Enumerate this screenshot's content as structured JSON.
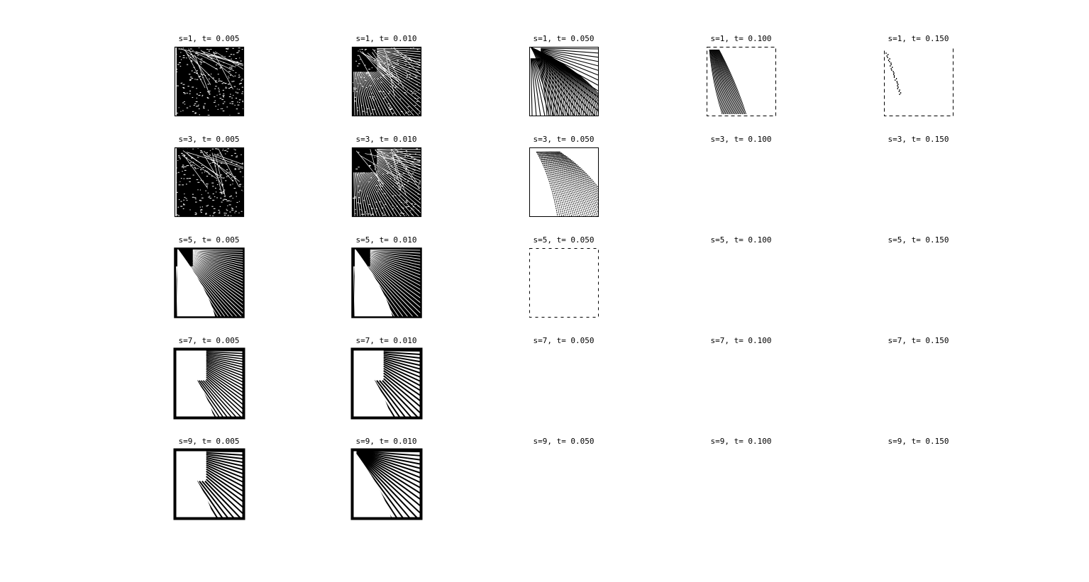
{
  "chart_data": {
    "type": "grid-of-plots",
    "rows_s": [
      1,
      3,
      5,
      7,
      9
    ],
    "cols_t": [
      "0.005",
      "0.010",
      "0.050",
      "0.100",
      "0.150"
    ],
    "titles": [
      [
        "s=1, t= 0.005",
        "s=1, t= 0.010",
        "s=1, t= 0.050",
        "s=1, t= 0.100",
        "s=1, t= 0.150"
      ],
      [
        "s=3, t= 0.005",
        "s=3, t= 0.010",
        "s=3, t= 0.050",
        "s=3, t= 0.100",
        "s=3, t= 0.150"
      ],
      [
        "s=5, t= 0.005",
        "s=5, t= 0.010",
        "s=5, t= 0.050",
        "s=5, t= 0.100",
        "s=5, t= 0.150"
      ],
      [
        "s=7, t= 0.005",
        "s=7, t= 0.010",
        "s=7, t= 0.050",
        "s=7, t= 0.100",
        "s=7, t= 0.150"
      ],
      [
        "s=9, t= 0.005",
        "s=9, t= 0.010",
        "s=9, t= 0.050",
        "s=9, t= 0.100",
        "s=9, t= 0.150"
      ]
    ],
    "panel_style": [
      [
        "dense",
        "dense-fan",
        "curved-fan",
        "sparse-curve",
        "faint-streak"
      ],
      [
        "dense",
        "dense-fan",
        "sparse-fan",
        "empty",
        "empty"
      ],
      [
        "clearing",
        "clearing-fan",
        "dashed-box",
        "empty",
        "empty"
      ],
      [
        "wedge-fan",
        "wedge-fan-wide",
        "empty",
        "empty",
        "empty"
      ],
      [
        "wedge-fan-wide",
        "fan-only",
        "empty",
        "empty",
        "empty"
      ]
    ],
    "colors": {
      "ink": "#000000",
      "background": "#ffffff"
    }
  }
}
